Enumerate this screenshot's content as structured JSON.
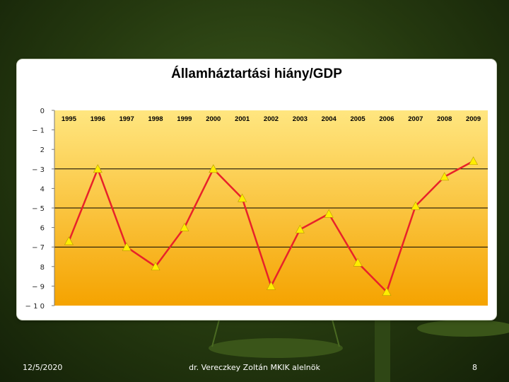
{
  "colors": {
    "plot_top": "#ffe680",
    "plot_bottom": "#f5a300",
    "line": "#e8222a",
    "marker": "#ffee00",
    "gridline": "#000000"
  },
  "chart_data": {
    "type": "line",
    "title": "Államháztartási hiány/GDP",
    "xlabel": "",
    "ylabel": "",
    "categories": [
      "1995",
      "1996",
      "1997",
      "1998",
      "1999",
      "2000",
      "2001",
      "2002",
      "2003",
      "2004",
      "2005",
      "2006",
      "2007",
      "2008",
      "2009"
    ],
    "values": [
      -6.7,
      -3.0,
      -7.0,
      -8.0,
      -6.0,
      -3.0,
      -4.5,
      -9.0,
      -6.1,
      -5.3,
      -7.8,
      -9.3,
      -4.9,
      -3.4,
      -2.6
    ],
    "ylim": [
      -10,
      0
    ],
    "yticks": [
      0,
      -1,
      -2,
      -3,
      -4,
      -5,
      -6,
      -7,
      -8,
      -9,
      -10
    ],
    "ytick_labels": [
      "0",
      "− 1",
      "2",
      "− 3",
      "4",
      "− 5",
      "6",
      "− 7",
      "8",
      "− 9",
      "− 1 0"
    ],
    "gridlines_at": [
      -3,
      -5,
      -7
    ],
    "x_axis_position": "top",
    "legend": "none"
  },
  "footer": {
    "date": "12/5/2020",
    "author": "dr. Vereczkey Zoltán MKIK alelnök",
    "page": "8"
  }
}
